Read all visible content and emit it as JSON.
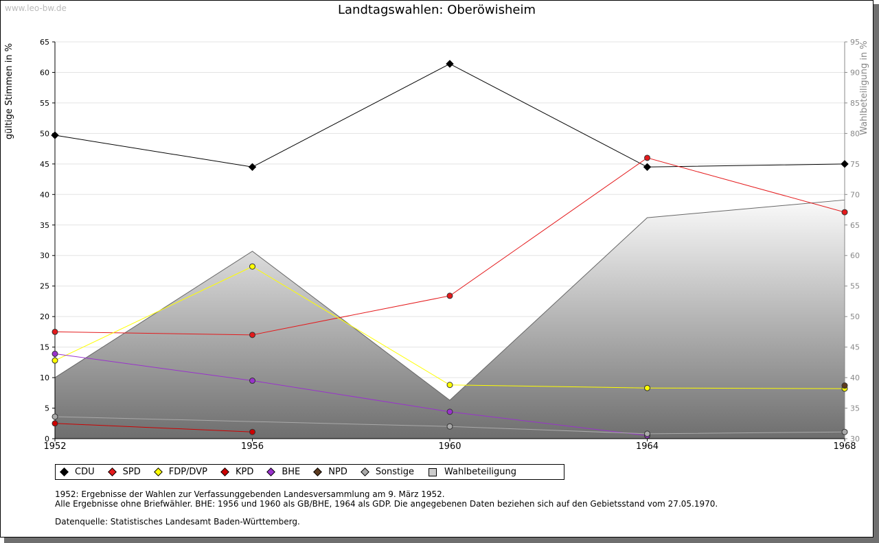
{
  "site": "www.leo-bw.de",
  "chart_data": {
    "type": "line",
    "title": "Landtagswahlen: Oberöwisheim",
    "ylabel": "gültige Stimmen in %",
    "y2label": "Wahlbeteiligung in %",
    "xlabel": "",
    "categories": [
      "1952",
      "1956",
      "1960",
      "1964",
      "1968"
    ],
    "ylim": [
      0,
      65
    ],
    "yticks": [
      "0",
      "5",
      "10",
      "15",
      "20",
      "25",
      "30",
      "35",
      "40",
      "45",
      "50",
      "55",
      "60",
      "65"
    ],
    "y2lim": [
      30,
      95
    ],
    "y2ticks": [
      "30",
      "35",
      "40",
      "45",
      "50",
      "55",
      "60",
      "65",
      "70",
      "75",
      "80",
      "85",
      "90",
      "95"
    ],
    "grid": true,
    "legend_position": "bottom-left",
    "series": [
      {
        "name": "Wahlbeteiligung",
        "kind": "area",
        "axis": "right",
        "color": "#999999",
        "values": [
          40.0,
          60.7,
          36.3,
          66.2,
          69.1
        ]
      },
      {
        "name": "CDU",
        "axis": "left",
        "color": "#000000",
        "values": [
          49.7,
          44.5,
          61.4,
          44.5,
          45.0
        ]
      },
      {
        "name": "SPD",
        "axis": "left",
        "color": "#e41a1c",
        "values": [
          17.5,
          17.0,
          23.4,
          46.0,
          37.1
        ]
      },
      {
        "name": "FDP/DVP",
        "axis": "left",
        "color": "#ffff00",
        "values": [
          12.8,
          28.2,
          8.8,
          8.3,
          8.2
        ]
      },
      {
        "name": "KPD",
        "axis": "left",
        "color": "#cc0000",
        "values": [
          2.5,
          1.1,
          null,
          null,
          null
        ]
      },
      {
        "name": "BHE",
        "axis": "left",
        "color": "#9932cc",
        "values": [
          13.9,
          9.5,
          4.4,
          0.5,
          null
        ]
      },
      {
        "name": "NPD",
        "axis": "left",
        "color": "#5c3a1e",
        "values": [
          null,
          null,
          null,
          null,
          8.7
        ]
      },
      {
        "name": "Sonstige",
        "axis": "left",
        "color": "#aaaaaa",
        "values": [
          3.6,
          null,
          2.0,
          0.8,
          1.1
        ]
      }
    ]
  },
  "legend": {
    "items": [
      {
        "label": "CDU",
        "color": "#000000"
      },
      {
        "label": "SPD",
        "color": "#e41a1c"
      },
      {
        "label": "FDP/DVP",
        "color": "#ffff00"
      },
      {
        "label": "KPD",
        "color": "#cc0000"
      },
      {
        "label": "BHE",
        "color": "#9932cc"
      },
      {
        "label": "NPD",
        "color": "#5c3a1e"
      },
      {
        "label": "Sonstige",
        "color": "#aaaaaa"
      }
    ],
    "turnout_label": "Wahlbeteiligung"
  },
  "notes": {
    "line1": "1952: Ergebnisse der Wahlen zur Verfassunggebenden Landesversammlung am 9. März 1952.",
    "line2": "Alle Ergebnisse ohne Briefwähler. BHE: 1956 und 1960 als GB/BHE, 1964 als GDP. Die angegebenen Daten beziehen sich auf den Gebietsstand vom 27.05.1970.",
    "source": "Datenquelle: Statistisches Landesamt Baden-Württemberg."
  }
}
